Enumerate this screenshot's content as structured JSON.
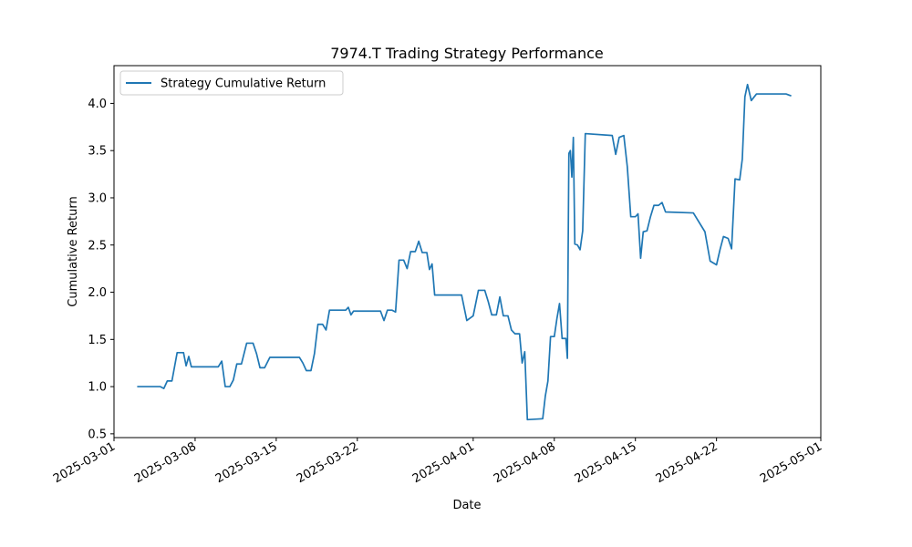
{
  "chart_data": {
    "type": "line",
    "title": "7974.T Trading Strategy Performance",
    "xlabel": "Date",
    "ylabel": "Cumulative Return",
    "xlim": [
      "2025-03-01",
      "2025-05-01"
    ],
    "ylim": [
      0.46,
      4.4
    ],
    "x_ticks": [
      "2025-03-01",
      "2025-03-08",
      "2025-03-15",
      "2025-03-22",
      "2025-04-01",
      "2025-04-08",
      "2025-04-15",
      "2025-04-22",
      "2025-05-01"
    ],
    "y_ticks": [
      0.5,
      1.0,
      1.5,
      2.0,
      2.5,
      3.0,
      3.5,
      4.0
    ],
    "y_tick_labels": [
      "0.5",
      "1.0",
      "1.5",
      "2.0",
      "2.5",
      "3.0",
      "3.5",
      "4.0"
    ],
    "grid": false,
    "legend_position": "top-left",
    "series": [
      {
        "name": "Strategy Cumulative Return",
        "color": "#1f77b4",
        "points": [
          [
            "2025-03-03",
            1.0
          ],
          [
            "2025-03-05",
            1.0
          ],
          [
            "2025-03-05",
            0.98
          ],
          [
            "2025-03-05",
            1.06
          ],
          [
            "2025-03-06",
            1.06
          ],
          [
            "2025-03-06",
            1.36
          ],
          [
            "2025-03-07",
            1.36
          ],
          [
            "2025-03-07",
            1.22
          ],
          [
            "2025-03-07",
            1.32
          ],
          [
            "2025-03-07",
            1.21
          ],
          [
            "2025-03-09",
            1.21
          ],
          [
            "2025-03-10",
            1.21
          ],
          [
            "2025-03-10",
            1.27
          ],
          [
            "2025-03-10",
            1.0
          ],
          [
            "2025-03-11",
            1.0
          ],
          [
            "2025-03-11",
            1.07
          ],
          [
            "2025-03-11",
            1.24
          ],
          [
            "2025-03-12",
            1.24
          ],
          [
            "2025-03-12",
            1.46
          ],
          [
            "2025-03-13",
            1.46
          ],
          [
            "2025-03-13",
            1.35
          ],
          [
            "2025-03-13",
            1.2
          ],
          [
            "2025-03-14",
            1.2
          ],
          [
            "2025-03-14",
            1.31
          ],
          [
            "2025-03-17",
            1.31
          ],
          [
            "2025-03-17",
            1.25
          ],
          [
            "2025-03-17",
            1.17
          ],
          [
            "2025-03-18",
            1.17
          ],
          [
            "2025-03-18",
            1.35
          ],
          [
            "2025-03-18",
            1.66
          ],
          [
            "2025-03-19",
            1.66
          ],
          [
            "2025-03-19",
            1.6
          ],
          [
            "2025-03-19",
            1.81
          ],
          [
            "2025-03-21",
            1.81
          ],
          [
            "2025-03-21",
            1.84
          ],
          [
            "2025-03-21",
            1.76
          ],
          [
            "2025-03-21",
            1.8
          ],
          [
            "2025-03-24",
            1.8
          ],
          [
            "2025-03-24",
            1.7
          ],
          [
            "2025-03-24",
            1.81
          ],
          [
            "2025-03-25",
            1.81
          ],
          [
            "2025-03-25",
            1.79
          ],
          [
            "2025-03-25",
            2.34
          ],
          [
            "2025-03-26",
            2.34
          ],
          [
            "2025-03-26",
            2.25
          ],
          [
            "2025-03-26",
            2.43
          ],
          [
            "2025-03-27",
            2.43
          ],
          [
            "2025-03-27",
            2.54
          ],
          [
            "2025-03-27",
            2.42
          ],
          [
            "2025-03-28",
            2.42
          ],
          [
            "2025-03-28",
            2.24
          ],
          [
            "2025-03-28",
            2.3
          ],
          [
            "2025-03-28",
            1.97
          ],
          [
            "2025-03-31",
            1.97
          ],
          [
            "2025-03-31",
            1.7
          ],
          [
            "2025-04-01",
            1.75
          ],
          [
            "2025-04-01",
            2.02
          ],
          [
            "2025-04-02",
            2.02
          ],
          [
            "2025-04-02",
            1.9
          ],
          [
            "2025-04-02",
            1.76
          ],
          [
            "2025-04-03",
            1.76
          ],
          [
            "2025-04-03",
            1.95
          ],
          [
            "2025-04-03",
            1.75
          ],
          [
            "2025-04-04",
            1.75
          ],
          [
            "2025-04-04",
            1.6
          ],
          [
            "2025-04-04",
            1.56
          ],
          [
            "2025-04-05",
            1.56
          ],
          [
            "2025-04-05",
            1.25
          ],
          [
            "2025-04-05",
            1.37
          ],
          [
            "2025-04-05",
            0.65
          ],
          [
            "2025-04-07",
            0.66
          ],
          [
            "2025-04-07",
            0.9
          ],
          [
            "2025-04-07",
            1.06
          ],
          [
            "2025-04-07",
            1.53
          ],
          [
            "2025-04-08",
            1.53
          ],
          [
            "2025-04-08",
            1.72
          ],
          [
            "2025-04-08",
            1.88
          ],
          [
            "2025-04-08",
            1.51
          ],
          [
            "2025-04-09",
            1.51
          ],
          [
            "2025-04-09",
            1.3
          ],
          [
            "2025-04-09",
            3.47
          ],
          [
            "2025-04-09",
            3.5
          ],
          [
            "2025-04-09",
            3.22
          ],
          [
            "2025-04-09",
            3.64
          ],
          [
            "2025-04-09",
            2.51
          ],
          [
            "2025-04-10",
            2.5
          ],
          [
            "2025-04-10",
            2.45
          ],
          [
            "2025-04-10",
            2.65
          ],
          [
            "2025-04-10",
            3.68
          ],
          [
            "2025-04-13",
            3.66
          ],
          [
            "2025-04-13",
            3.46
          ],
          [
            "2025-04-13",
            3.64
          ],
          [
            "2025-04-14",
            3.66
          ],
          [
            "2025-04-14",
            3.33
          ],
          [
            "2025-04-14",
            2.8
          ],
          [
            "2025-04-15",
            2.8
          ],
          [
            "2025-04-15",
            2.83
          ],
          [
            "2025-04-15",
            2.36
          ],
          [
            "2025-04-15",
            2.64
          ],
          [
            "2025-04-16",
            2.65
          ],
          [
            "2025-04-16",
            2.8
          ],
          [
            "2025-04-16",
            2.92
          ],
          [
            "2025-04-17",
            2.92
          ],
          [
            "2025-04-17",
            2.95
          ],
          [
            "2025-04-17",
            2.85
          ],
          [
            "2025-04-20",
            2.84
          ],
          [
            "2025-04-21",
            2.64
          ],
          [
            "2025-04-21",
            2.33
          ],
          [
            "2025-04-22",
            2.29
          ],
          [
            "2025-04-22",
            2.45
          ],
          [
            "2025-04-22",
            2.59
          ],
          [
            "2025-04-23",
            2.57
          ],
          [
            "2025-04-23",
            2.46
          ],
          [
            "2025-04-23",
            3.2
          ],
          [
            "2025-04-24",
            3.19
          ],
          [
            "2025-04-24",
            3.41
          ],
          [
            "2025-04-24",
            4.07
          ],
          [
            "2025-04-24",
            4.2
          ],
          [
            "2025-04-25",
            4.03
          ],
          [
            "2025-04-25",
            4.1
          ],
          [
            "2025-04-28",
            4.1
          ],
          [
            "2025-04-28",
            4.08
          ]
        ]
      }
    ]
  }
}
